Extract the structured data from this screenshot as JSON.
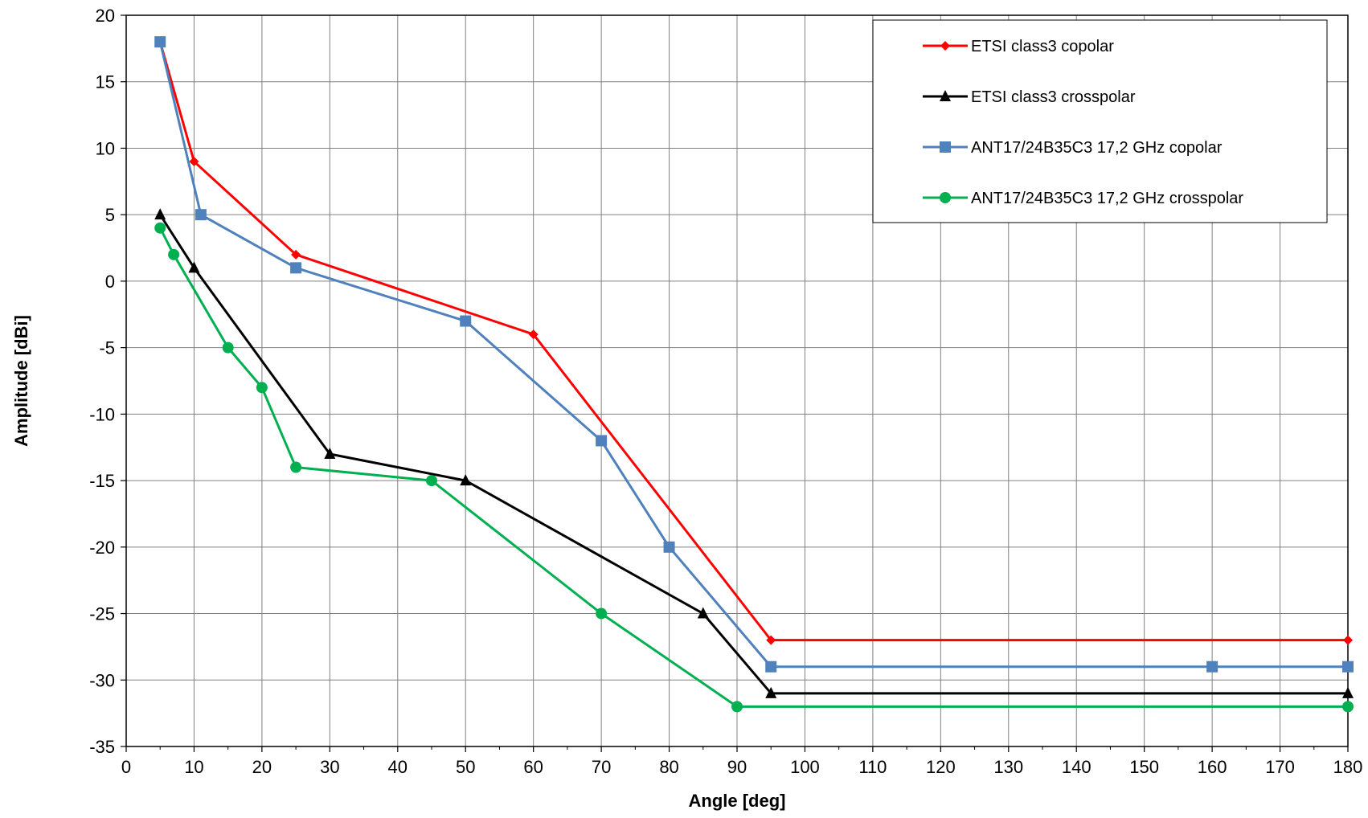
{
  "chart_data": {
    "type": "line",
    "title": "",
    "xlabel": "Angle [deg]",
    "ylabel": "Amplitude [dBi]",
    "xlim": [
      0,
      180
    ],
    "ylim": [
      -35,
      20
    ],
    "xticks": [
      0,
      10,
      20,
      30,
      40,
      50,
      60,
      70,
      80,
      90,
      100,
      110,
      120,
      130,
      140,
      150,
      160,
      170,
      180
    ],
    "yticks": [
      20,
      15,
      10,
      5,
      0,
      -5,
      -10,
      -15,
      -20,
      -25,
      -30,
      -35
    ],
    "grid": true,
    "legend_position": "top-right",
    "series": [
      {
        "name": "ETSI class3 copolar",
        "color": "#ff0000",
        "marker": "diamond",
        "points": [
          [
            5,
            18
          ],
          [
            10,
            9
          ],
          [
            25,
            2
          ],
          [
            60,
            -4
          ],
          [
            95,
            -27
          ],
          [
            180,
            -27
          ]
        ]
      },
      {
        "name": "ETSI class3 crosspolar",
        "color": "#000000",
        "marker": "triangle",
        "points": [
          [
            5,
            5
          ],
          [
            10,
            1
          ],
          [
            30,
            -13
          ],
          [
            50,
            -15
          ],
          [
            85,
            -25
          ],
          [
            95,
            -31
          ],
          [
            180,
            -31
          ]
        ]
      },
      {
        "name": "ANT17/24B35C3 17,2 GHz copolar",
        "color": "#4f81bd",
        "marker": "square",
        "points": [
          [
            5,
            18
          ],
          [
            11,
            5
          ],
          [
            25,
            1
          ],
          [
            50,
            -3
          ],
          [
            70,
            -12
          ],
          [
            80,
            -20
          ],
          [
            95,
            -29
          ],
          [
            160,
            -29
          ],
          [
            180,
            -29
          ]
        ]
      },
      {
        "name": "ANT17/24B35C3 17,2 GHz crosspolar",
        "color": "#00b050",
        "marker": "circle",
        "points": [
          [
            5,
            4
          ],
          [
            7,
            2
          ],
          [
            15,
            -5
          ],
          [
            20,
            -8
          ],
          [
            25,
            -14
          ],
          [
            45,
            -15
          ],
          [
            70,
            -25
          ],
          [
            90,
            -32
          ],
          [
            180,
            -32
          ]
        ]
      }
    ]
  }
}
